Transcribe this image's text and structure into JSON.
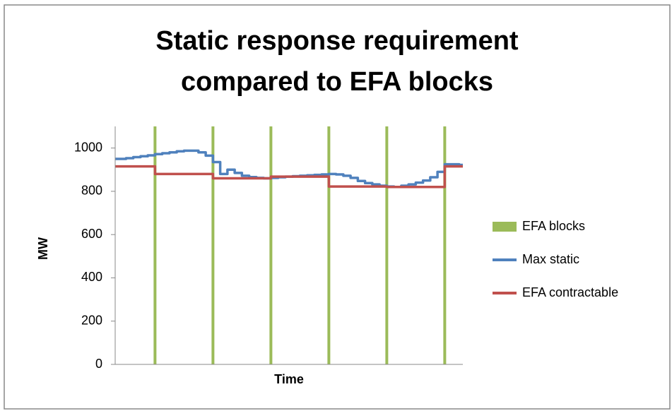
{
  "chart_data": {
    "type": "line",
    "title": [
      "Static response requirement",
      "compared to EFA blocks"
    ],
    "y_label": "MW",
    "x_label": "Time",
    "categories": [
      null,
      null,
      null,
      null,
      null,
      null,
      null,
      null,
      null,
      null,
      null,
      null,
      null,
      null,
      null,
      null,
      null,
      null,
      null,
      null,
      null,
      null,
      null,
      null,
      null,
      null,
      null,
      null,
      null,
      null,
      null,
      null,
      null,
      null,
      null,
      null,
      null,
      null,
      null,
      null,
      null,
      null,
      null,
      null,
      null,
      null,
      null,
      null
    ],
    "ylim": [
      0,
      1100
    ],
    "yticks": [
      0,
      200,
      400,
      600,
      800,
      1000
    ],
    "grid": false,
    "legend": "right",
    "series": [
      {
        "name": "EFA blocks",
        "type": "bar",
        "color": "#9bbb59",
        "values": [
          null,
          null,
          null,
          null,
          null,
          1100,
          null,
          null,
          null,
          null,
          null,
          null,
          null,
          1100,
          null,
          null,
          null,
          null,
          null,
          null,
          null,
          1100,
          null,
          null,
          null,
          null,
          null,
          null,
          null,
          1100,
          null,
          null,
          null,
          null,
          null,
          null,
          null,
          1100,
          null,
          null,
          null,
          null,
          null,
          null,
          null,
          1100,
          null,
          null
        ]
      },
      {
        "name": "Max static",
        "type": "step",
        "color": "#4f81bd",
        "values": [
          950,
          953,
          958,
          962,
          966,
          972,
          976,
          980,
          985,
          988,
          988,
          980,
          965,
          935,
          880,
          900,
          885,
          872,
          866,
          862,
          860,
          862,
          865,
          868,
          870,
          872,
          874,
          876,
          878,
          880,
          878,
          872,
          862,
          848,
          838,
          832,
          826,
          822,
          820,
          826,
          832,
          840,
          850,
          865,
          890,
          925,
          925,
          922
        ]
      },
      {
        "name": "EFA contractable",
        "type": "step",
        "color": "#c0504d",
        "values": [
          915,
          915,
          915,
          915,
          915,
          880,
          880,
          880,
          880,
          880,
          880,
          880,
          880,
          860,
          860,
          860,
          860,
          860,
          860,
          860,
          860,
          868,
          868,
          868,
          868,
          868,
          868,
          868,
          868,
          822,
          822,
          822,
          822,
          822,
          822,
          822,
          822,
          820,
          820,
          820,
          820,
          820,
          820,
          820,
          820,
          915,
          915,
          915
        ]
      }
    ]
  }
}
